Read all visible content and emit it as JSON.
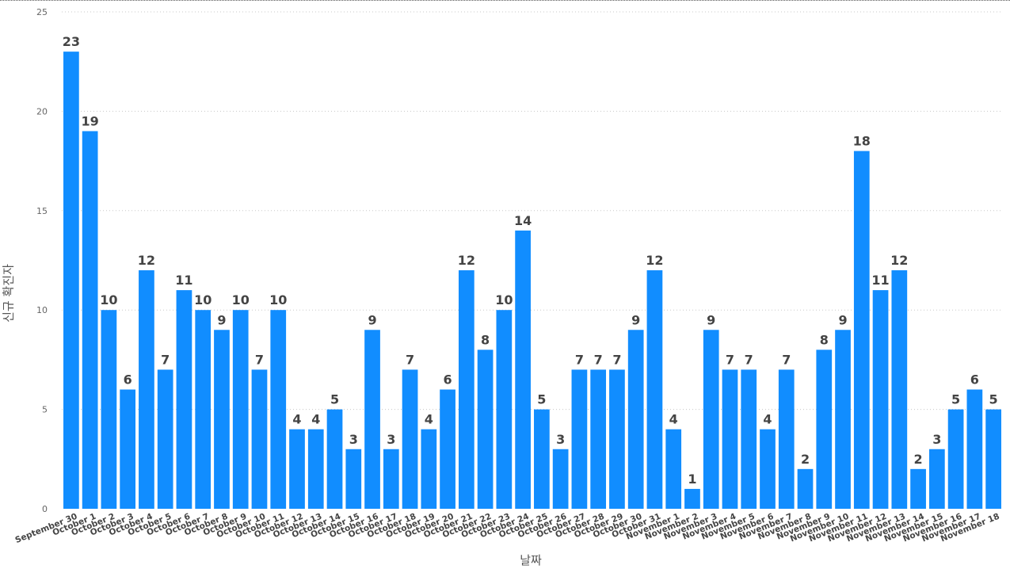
{
  "chart_data": {
    "type": "bar",
    "xlabel": "날짜",
    "ylabel": "신규 확진자",
    "ylim": [
      0,
      25
    ],
    "yticks": [
      0,
      5,
      10,
      15,
      20,
      25
    ],
    "grid": true,
    "bar_color": "#118DFF",
    "categories": [
      "September 30",
      "October 1",
      "October 2",
      "October 3",
      "October 4",
      "October 5",
      "October 6",
      "October 7",
      "October 8",
      "October 9",
      "October 10",
      "October 11",
      "October 12",
      "October 13",
      "October 14",
      "October 15",
      "October 16",
      "October 17",
      "October 18",
      "October 19",
      "October 20",
      "October 21",
      "October 22",
      "October 23",
      "October 24",
      "October 25",
      "October 26",
      "October 27",
      "October 28",
      "October 29",
      "October 30",
      "October 31",
      "November 1",
      "November 2",
      "November 3",
      "November 4",
      "November 5",
      "November 6",
      "November 7",
      "November 8",
      "November 9",
      "November 10",
      "November 11",
      "November 12",
      "November 13",
      "November 14",
      "November 15",
      "November 16",
      "November 17",
      "November 18"
    ],
    "values": [
      23,
      19,
      10,
      6,
      12,
      7,
      11,
      10,
      9,
      10,
      7,
      10,
      4,
      4,
      5,
      3,
      9,
      3,
      7,
      4,
      6,
      12,
      8,
      10,
      14,
      5,
      3,
      7,
      7,
      7,
      9,
      12,
      4,
      1,
      9,
      7,
      7,
      4,
      7,
      2,
      8,
      9,
      18,
      11,
      12,
      2,
      3,
      5,
      6,
      5
    ]
  }
}
